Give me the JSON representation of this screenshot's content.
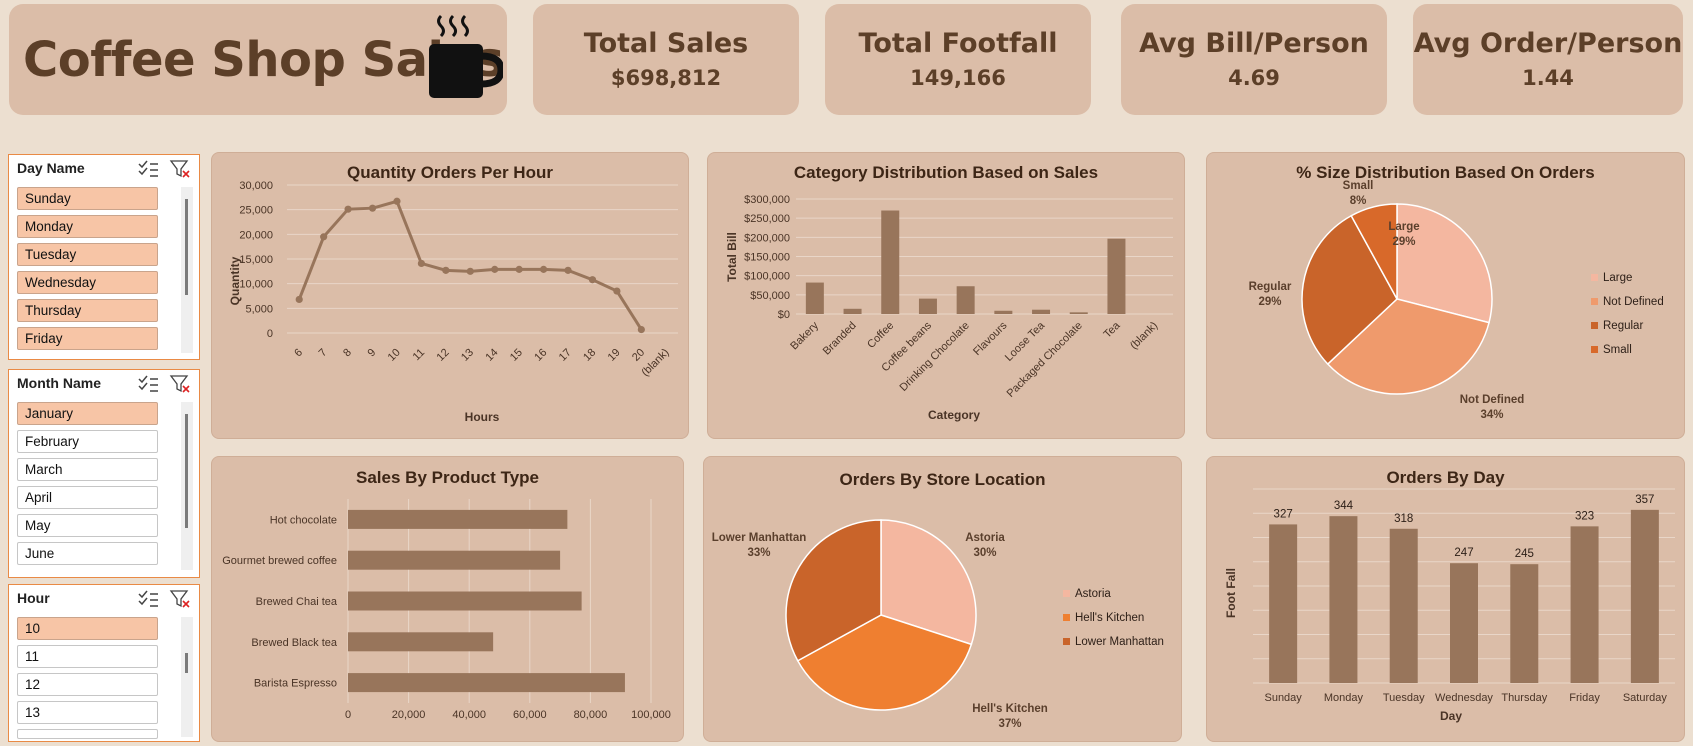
{
  "header": {
    "title": "Coffee Shop Sales",
    "mug_icon": "coffee-mug-icon"
  },
  "kpis": [
    {
      "label": "Total Sales",
      "value": "$698,812"
    },
    {
      "label": "Total Footfall",
      "value": "149,166"
    },
    {
      "label": "Avg Bill/Person",
      "value": "4.69"
    },
    {
      "label": "Avg Order/Person",
      "value": "1.44"
    }
  ],
  "slicers": {
    "day": {
      "title": "Day Name",
      "items": [
        "Sunday",
        "Monday",
        "Tuesday",
        "Wednesday",
        "Thursday",
        "Friday"
      ],
      "selected": [
        "Sunday",
        "Monday",
        "Tuesday",
        "Wednesday",
        "Thursday",
        "Friday"
      ]
    },
    "month": {
      "title": "Month Name",
      "items": [
        "January",
        "February",
        "March",
        "April",
        "May",
        "June"
      ],
      "selected": [
        "January"
      ]
    },
    "hour": {
      "title": "Hour",
      "items": [
        "10",
        "11",
        "12",
        "13"
      ],
      "selected": [
        "10"
      ]
    }
  },
  "colors": {
    "bar": "#98755b",
    "accent_light": "#f4b7a0",
    "accent_mid": "#ef9a6c",
    "accent_dark": "#c9642a",
    "orange": "#ef7f30",
    "panel": "#dbbda8"
  },
  "chart_data": [
    {
      "type": "line",
      "title": "Quantity Orders Per Hour",
      "xlabel": "Hours",
      "ylabel": "Quantity",
      "categories": [
        "6",
        "7",
        "8",
        "9",
        "10",
        "11",
        "12",
        "13",
        "14",
        "15",
        "16",
        "17",
        "18",
        "19",
        "20",
        "(blank)"
      ],
      "values": [
        6800,
        19500,
        25100,
        25300,
        26700,
        14100,
        12700,
        12500,
        12900,
        12900,
        12900,
        12700,
        10800,
        8500,
        700,
        null
      ],
      "yticks": [
        "0",
        "5,000",
        "10,000",
        "15,000",
        "20,000",
        "25,000",
        "30,000"
      ],
      "ylim": [
        0,
        30000
      ]
    },
    {
      "type": "bar",
      "title": "Category Distribution Based on Sales",
      "xlabel": "Category",
      "ylabel": "Total Bill",
      "categories": [
        "Bakery",
        "Branded",
        "Coffee",
        "Coffee beans",
        "Drinking Chocolate",
        "Flavours",
        "Loose Tea",
        "Packaged Chocolate",
        "Tea",
        "(blank)"
      ],
      "values": [
        82000,
        13600,
        270000,
        40100,
        72400,
        8400,
        11200,
        4400,
        196400,
        0
      ],
      "yticks": [
        "$0",
        "$50,000",
        "$100,000",
        "$150,000",
        "$200,000",
        "$250,000",
        "$300,000"
      ],
      "ylim": [
        0,
        300000
      ]
    },
    {
      "type": "pie",
      "title": "% Size Distribution Based On Orders",
      "categories": [
        "Large",
        "Not Defined",
        "Regular",
        "Small"
      ],
      "values": [
        29,
        34,
        29,
        8
      ],
      "labels": [
        "29%",
        "34%",
        "29%",
        "8%"
      ]
    },
    {
      "type": "bar",
      "orientation": "horizontal",
      "title": "Sales By Product Type",
      "categories": [
        "Barista Espresso",
        "Brewed Black tea",
        "Brewed Chai tea",
        "Gourmet brewed coffee",
        "Hot chocolate"
      ],
      "values": [
        91400,
        47900,
        77100,
        70000,
        72400
      ],
      "xticks": [
        "0",
        "20,000",
        "40,000",
        "60,000",
        "80,000",
        "100,000"
      ],
      "xlim": [
        0,
        100000
      ]
    },
    {
      "type": "pie",
      "title": "Orders By Store Location",
      "categories": [
        "Astoria",
        "Hell's Kitchen",
        "Lower Manhattan"
      ],
      "values": [
        30,
        37,
        33
      ],
      "labels": [
        "30%",
        "37%",
        "33%"
      ]
    },
    {
      "type": "bar",
      "title": "Orders By Day",
      "xlabel": "Day",
      "ylabel": "Foot Fall",
      "categories": [
        "Sunday",
        "Monday",
        "Tuesday",
        "Wednesday",
        "Thursday",
        "Friday",
        "Saturday"
      ],
      "values": [
        327,
        344,
        318,
        247,
        245,
        323,
        357
      ],
      "ylim": [
        0,
        400
      ]
    }
  ]
}
